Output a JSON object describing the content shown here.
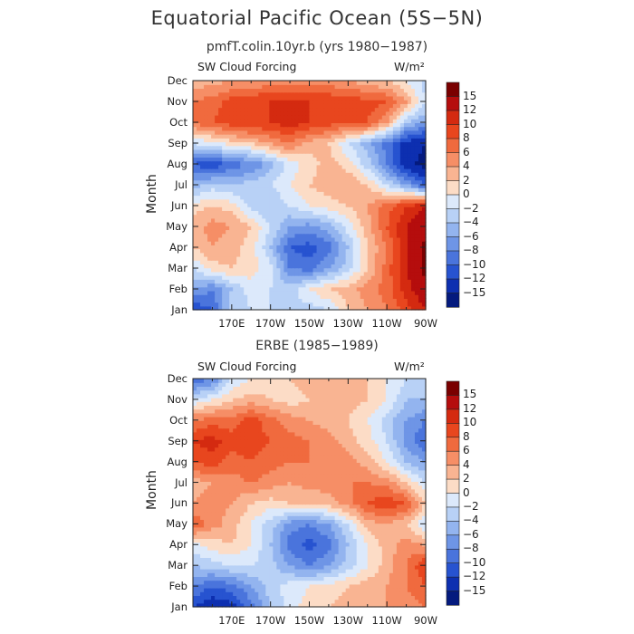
{
  "title": "Equatorial Pacific Ocean (5S−5N)",
  "chart_data": [
    {
      "type": "heatmap",
      "title": "pmfT.colin.10yr.b (yrs 1980−1987)",
      "variable_label": "SW Cloud Forcing",
      "units_label": "W/m²",
      "ylabel": "Month",
      "months": [
        "Jan",
        "Feb",
        "Mar",
        "Apr",
        "May",
        "Jun",
        "Jul",
        "Aug",
        "Sep",
        "Oct",
        "Nov",
        "Dec"
      ],
      "x_ticks": [
        "170E",
        "170W",
        "150W",
        "130W",
        "110W",
        "90W"
      ],
      "x_tick_lon": [
        170,
        190,
        210,
        230,
        250,
        270
      ],
      "x_range_lon": [
        150,
        270
      ],
      "x_grid_lon": [
        150,
        160,
        170,
        180,
        190,
        200,
        210,
        220,
        230,
        240,
        250,
        260,
        270
      ],
      "values": [
        [
          -12,
          -10,
          -3,
          -2,
          -2,
          -2,
          -3,
          -2,
          2,
          4,
          6,
          9,
          12
        ],
        [
          -6,
          -8,
          -4,
          -1,
          -2,
          -3,
          0,
          2,
          3,
          5,
          7,
          11,
          14
        ],
        [
          -2,
          1,
          2,
          1,
          -1,
          -8,
          -9,
          -6,
          -3,
          2,
          7,
          12,
          16
        ],
        [
          2,
          4,
          3,
          1,
          -4,
          -10,
          -11,
          -9,
          -4,
          2,
          6,
          12,
          16
        ],
        [
          3,
          5,
          4,
          2,
          -2,
          -6,
          -7,
          -5,
          -1,
          3,
          8,
          12,
          14
        ],
        [
          1,
          2,
          1,
          -3,
          -4,
          -2,
          0,
          1,
          2,
          4,
          7,
          10,
          12
        ],
        [
          -5,
          -3,
          -4,
          -3,
          -2,
          0,
          2,
          3,
          4,
          2,
          -2,
          -6,
          -10
        ],
        [
          -10,
          -12,
          -9,
          -8,
          -5,
          -1,
          1,
          3,
          1,
          -3,
          -8,
          -14,
          -16
        ],
        [
          -2,
          -1,
          1,
          2,
          4,
          6,
          3,
          2,
          -2,
          -5,
          -9,
          -13,
          -15
        ],
        [
          6,
          8,
          9,
          10,
          10,
          11,
          10,
          9,
          8,
          8,
          4,
          -4,
          -6
        ],
        [
          6,
          7,
          9,
          10,
          10,
          11,
          10,
          10,
          9,
          9,
          8,
          4,
          -2
        ],
        [
          3,
          3,
          4,
          4,
          5,
          5,
          5,
          5,
          4,
          3,
          2,
          0,
          -3
        ]
      ]
    },
    {
      "type": "heatmap",
      "title": "ERBE (1985−1989)",
      "variable_label": "SW Cloud Forcing",
      "units_label": "W/m²",
      "ylabel": "Month",
      "months": [
        "Jan",
        "Feb",
        "Mar",
        "Apr",
        "May",
        "Jun",
        "Jul",
        "Aug",
        "Sep",
        "Oct",
        "Nov",
        "Dec"
      ],
      "x_ticks": [
        "170E",
        "170W",
        "150W",
        "130W",
        "110W",
        "90W"
      ],
      "x_tick_lon": [
        170,
        190,
        210,
        230,
        250,
        270
      ],
      "x_range_lon": [
        150,
        270
      ],
      "x_grid_lon": [
        150,
        160,
        170,
        180,
        190,
        200,
        210,
        220,
        230,
        240,
        250,
        260,
        270
      ],
      "values": [
        [
          -12,
          -14,
          -13,
          -9,
          -4,
          -1,
          1,
          2,
          3,
          3,
          4,
          5,
          6
        ],
        [
          -8,
          -10,
          -9,
          -6,
          -3,
          -1,
          0,
          1,
          2,
          3,
          4,
          6,
          8
        ],
        [
          -4,
          -3,
          -2,
          -2,
          -3,
          -6,
          -8,
          -6,
          -3,
          0,
          3,
          6,
          10
        ],
        [
          -1,
          1,
          2,
          0,
          -4,
          -9,
          -11,
          -9,
          -4,
          0,
          3,
          5,
          4
        ],
        [
          8,
          5,
          3,
          0,
          -3,
          -7,
          -8,
          -6,
          -2,
          3,
          4,
          2,
          -2
        ],
        [
          4,
          5,
          4,
          2,
          1,
          2,
          2,
          3,
          5,
          8,
          10,
          8,
          2
        ],
        [
          3,
          4,
          5,
          6,
          5,
          4,
          5,
          5,
          6,
          6,
          5,
          2,
          -2
        ],
        [
          8,
          9,
          7,
          8,
          7,
          6,
          6,
          6,
          5,
          3,
          0,
          -4,
          -6
        ],
        [
          10,
          11,
          9,
          9,
          8,
          7,
          6,
          5,
          3,
          1,
          -2,
          -7,
          -10
        ],
        [
          6,
          7,
          7,
          9,
          7,
          5,
          4,
          3,
          2,
          0,
          -3,
          -6,
          -8
        ],
        [
          -2,
          0,
          2,
          3,
          2,
          1,
          2,
          2,
          3,
          2,
          0,
          -4,
          -4
        ],
        [
          -10,
          -8,
          -2,
          0,
          1,
          2,
          3,
          3,
          3,
          2,
          0,
          -2,
          -2
        ]
      ]
    }
  ],
  "colorbar": {
    "levels": [
      -15,
      -12,
      -10,
      -8,
      -6,
      -4,
      -2,
      0,
      2,
      4,
      6,
      8,
      10,
      12,
      15
    ],
    "tick_labels": [
      "15",
      "12",
      "10",
      "8",
      "6",
      "4",
      "2",
      "0",
      "−2",
      "−4",
      "−6",
      "−8",
      "−10",
      "−12",
      "−15"
    ],
    "colors": [
      "#7a0000",
      "#b50d0d",
      "#d42a10",
      "#e8461e",
      "#f06a3e",
      "#f68e66",
      "#f9b492",
      "#fcdcc6",
      "#dce9fb",
      "#b8d1f6",
      "#93b4ef",
      "#6e95e6",
      "#4a74dc",
      "#2753d0",
      "#0d2fb0",
      "#041a7e"
    ]
  }
}
